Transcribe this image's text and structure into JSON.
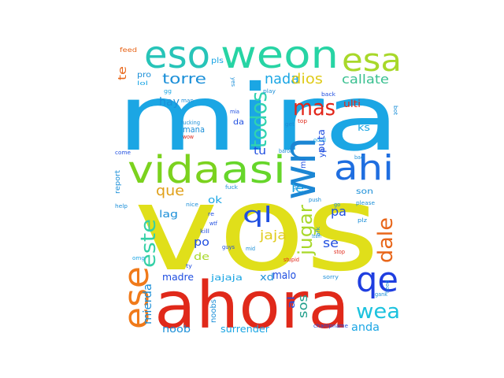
{
  "words": [
    {
      "text": "vos",
      "color": "#e0df1a"
    },
    {
      "text": "mira",
      "color": "#1ba6e4"
    },
    {
      "text": "ahora",
      "color": "#e0291a"
    },
    {
      "text": "vida",
      "color": "#7bd21e"
    },
    {
      "text": "asi",
      "color": "#66d62a"
    },
    {
      "text": "eso",
      "color": "#27c4b8"
    },
    {
      "text": "weon",
      "color": "#27d4a4"
    },
    {
      "text": "esa",
      "color": "#a8d82a"
    },
    {
      "text": "wn",
      "color": "#1b86d4"
    },
    {
      "text": "ahi",
      "color": "#1f6ee0"
    },
    {
      "text": "qe",
      "color": "#1f3ee0"
    },
    {
      "text": "ese",
      "color": "#f07a1a"
    },
    {
      "text": "este",
      "color": "#34d0a6"
    },
    {
      "text": "todos",
      "color": "#30d2b0"
    },
    {
      "text": "mas",
      "color": "#e2261a"
    },
    {
      "text": "ql",
      "color": "#1f4ee0"
    },
    {
      "text": "dale",
      "color": "#e8661a"
    },
    {
      "text": "jugar",
      "color": "#a8d82a"
    },
    {
      "text": "wea",
      "color": "#1bc2de"
    },
    {
      "text": "torre",
      "color": "#1b8fd8"
    },
    {
      "text": "nada",
      "color": "#1ba6e4"
    },
    {
      "text": "dios",
      "color": "#e0cb1a"
    },
    {
      "text": "callate",
      "color": "#3ac090"
    },
    {
      "text": "que",
      "color": "#e0a01a"
    },
    {
      "text": "mierda",
      "color": "#1b8fd8"
    },
    {
      "text": "jaja",
      "color": "#e0cb1a"
    },
    {
      "text": "malo",
      "color": "#1f4ee0"
    },
    {
      "text": "sos",
      "color": "#1f9e8a"
    },
    {
      "text": "anda",
      "color": "#1ba6e4"
    },
    {
      "text": "se",
      "color": "#1f4ee0"
    },
    {
      "text": "pa",
      "color": "#1f4ee0"
    },
    {
      "text": "te",
      "color": "#e8661a"
    },
    {
      "text": "hay",
      "color": "#1b8fd8"
    },
    {
      "text": "tu",
      "color": "#1f4ee0"
    },
    {
      "text": "le",
      "color": "#1ba6e4"
    },
    {
      "text": "puta",
      "color": "#1f4ee0"
    },
    {
      "text": "madre",
      "color": "#1f4ee0"
    },
    {
      "text": "noob",
      "color": "#1b8fd8"
    },
    {
      "text": "surrender",
      "color": "#1ba6e4"
    },
    {
      "text": "noobs",
      "color": "#1b8fd8"
    },
    {
      "text": "jajaja",
      "color": "#1ba6e4"
    },
    {
      "text": "mana",
      "color": "#1b8fd8"
    },
    {
      "text": "lag",
      "color": "#1b8fd8"
    },
    {
      "text": "po",
      "color": "#1f4ee0"
    },
    {
      "text": "de",
      "color": "#a8d82a"
    },
    {
      "text": "xd",
      "color": "#1b8fd8"
    },
    {
      "text": "al",
      "color": "#1f4ee0"
    },
    {
      "text": "ok",
      "color": "#1ba6e4"
    },
    {
      "text": "pls",
      "color": "#1ba6e4"
    },
    {
      "text": "pro",
      "color": "#1b8fd8"
    },
    {
      "text": "ulti",
      "color": "#e0291a"
    },
    {
      "text": "ks",
      "color": "#1ba6e4"
    },
    {
      "text": "son",
      "color": "#1b8fd8"
    },
    {
      "text": "da",
      "color": "#1f4ee0"
    },
    {
      "text": "mi",
      "color": "#1f4ee0"
    },
    {
      "text": "ya",
      "color": "#1f4ee0"
    },
    {
      "text": "report",
      "color": "#1b8fd8"
    },
    {
      "text": "feed",
      "color": "#e8661a"
    },
    {
      "text": "lol",
      "color": "#1ba6e4"
    },
    {
      "text": "gg",
      "color": "#1ba6e4"
    },
    {
      "text": "man",
      "color": "#1b8fd8"
    },
    {
      "text": "fucking",
      "color": "#1b8fd8"
    },
    {
      "text": "wow",
      "color": "#e0291a"
    },
    {
      "text": "mia",
      "color": "#1f4ee0"
    },
    {
      "text": "play",
      "color": "#1b8fd8"
    },
    {
      "text": "back",
      "color": "#1f4ee0"
    },
    {
      "text": "top",
      "color": "#e0291a"
    },
    {
      "text": "get",
      "color": "#1b8fd8"
    },
    {
      "text": "good",
      "color": "#1ba6e4"
    },
    {
      "text": "baron",
      "color": "#1b8fd8"
    },
    {
      "text": "bad",
      "color": "#1b8fd8"
    },
    {
      "text": "gank",
      "color": "#1b8fd8"
    },
    {
      "text": "push",
      "color": "#1b8fd8"
    },
    {
      "text": "please",
      "color": "#1b8fd8"
    },
    {
      "text": "plz",
      "color": "#1b8fd8"
    },
    {
      "text": "afk",
      "color": "#1b8fd8"
    },
    {
      "text": "team",
      "color": "#1b8fd8"
    },
    {
      "text": "stop",
      "color": "#e0291a"
    },
    {
      "text": "stupid",
      "color": "#e0291a"
    },
    {
      "text": "guys",
      "color": "#1f4ee0"
    },
    {
      "text": "mid",
      "color": "#1b8fd8"
    },
    {
      "text": "kill",
      "color": "#1f4ee0"
    },
    {
      "text": "wtf",
      "color": "#1f4ee0"
    },
    {
      "text": "re",
      "color": "#1f4ee0"
    },
    {
      "text": "nice",
      "color": "#1b8fd8"
    },
    {
      "text": "fuck",
      "color": "#1b8fd8"
    },
    {
      "text": "come",
      "color": "#1f4ee0"
    },
    {
      "text": "help",
      "color": "#1b8fd8"
    },
    {
      "text": "omg",
      "color": "#1ba6e4"
    },
    {
      "text": "ty",
      "color": "#1f4ee0"
    },
    {
      "text": "sorry",
      "color": "#1b8fd8"
    },
    {
      "text": "need",
      "color": "#1b8fd8"
    },
    {
      "text": "gank",
      "color": "#1b8fd8"
    },
    {
      "text": "champname",
      "color": "#1f4ee0"
    },
    {
      "text": "go",
      "color": "#1b8fd8"
    },
    {
      "text": "bot",
      "color": "#1b8fd8"
    },
    {
      "text": "yes",
      "color": "#1b8fd8"
    }
  ]
}
